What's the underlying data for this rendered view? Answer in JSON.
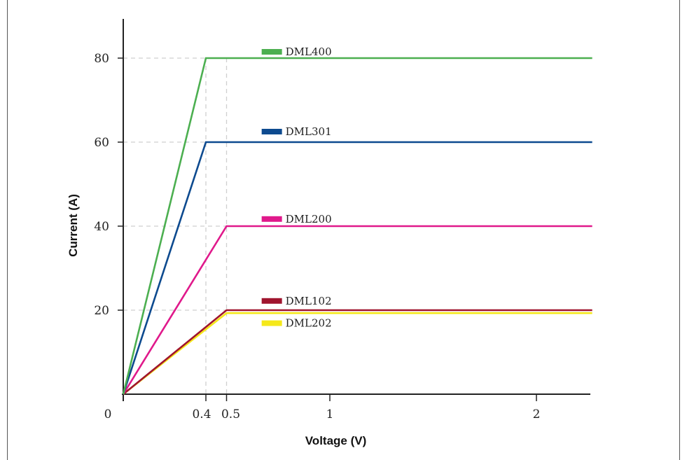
{
  "chart_data": {
    "type": "line",
    "title": "",
    "xlabel": "Voltage (V)",
    "ylabel": "Current (A)",
    "xlim": [
      0,
      2.27
    ],
    "ylim": [
      0,
      88
    ],
    "x_ticks": [
      {
        "value": 0.4,
        "label": "0.4"
      },
      {
        "value": 0.5,
        "label": "0.5"
      },
      {
        "value": 1,
        "label": "1"
      },
      {
        "value": 2,
        "label": "2"
      }
    ],
    "y_ticks": [
      {
        "value": 20,
        "label": "20"
      },
      {
        "value": 40,
        "label": "40"
      },
      {
        "value": 60,
        "label": "60"
      },
      {
        "value": 80,
        "label": "80"
      }
    ],
    "origin_label": "0",
    "grid": "dashed guides at knee points",
    "legend": "inline labels",
    "series": [
      {
        "name": "DML400",
        "color": "#4caf50",
        "points": [
          [
            0,
            0
          ],
          [
            0.4,
            80
          ],
          [
            2.27,
            80
          ]
        ],
        "label_y": 81.5
      },
      {
        "name": "DML301",
        "color": "#0d4a8f",
        "points": [
          [
            0,
            0
          ],
          [
            0.4,
            60
          ],
          [
            2.27,
            60
          ]
        ],
        "label_y": 62.5
      },
      {
        "name": "DML200",
        "color": "#e0198b",
        "points": [
          [
            0,
            0
          ],
          [
            0.5,
            40
          ],
          [
            2.27,
            40
          ]
        ],
        "label_y": 41.7
      },
      {
        "name": "DML102",
        "color": "#a0152e",
        "points": [
          [
            0,
            0
          ],
          [
            0.5,
            20
          ],
          [
            2.27,
            20
          ]
        ],
        "label_y": 22.2
      },
      {
        "name": "DML202",
        "color": "#f5e81a",
        "points": [
          [
            0,
            0
          ],
          [
            0.5,
            19.3
          ],
          [
            2.27,
            19.3
          ]
        ],
        "label_y": 16.9
      }
    ],
    "legend_x": 0.67
  }
}
